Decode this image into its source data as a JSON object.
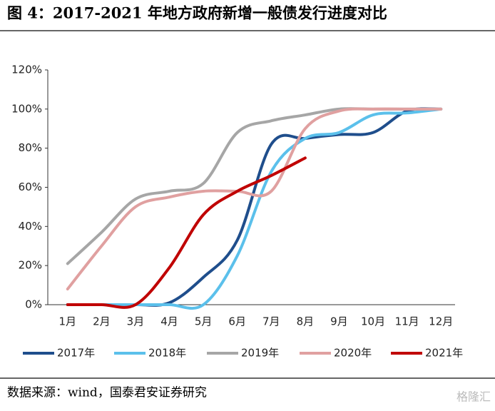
{
  "chart_data": {
    "type": "line",
    "title": "图 4：2017-2021 年地方政府新增一般债发行进度对比",
    "source": "数据来源：wind，国泰君安证券研究",
    "watermark": "格隆汇",
    "categories": [
      "1月",
      "2月",
      "3月",
      "4月",
      "5月",
      "6月",
      "7月",
      "8月",
      "9月",
      "10月",
      "11月",
      "12月"
    ],
    "ylim": [
      0,
      120
    ],
    "yticks": [
      {
        "value": 0,
        "label": "0%"
      },
      {
        "value": 20,
        "label": "20%"
      },
      {
        "value": 40,
        "label": "40%"
      },
      {
        "value": 60,
        "label": "60%"
      },
      {
        "value": 80,
        "label": "80%"
      },
      {
        "value": 100,
        "label": "100%"
      },
      {
        "value": 120,
        "label": "120%"
      }
    ],
    "legend": "bottom",
    "series": [
      {
        "name": "2017年",
        "color": "#1f4e8c",
        "values": [
          0,
          0,
          0,
          1,
          14,
          33,
          82,
          85,
          87,
          88,
          99,
          100
        ]
      },
      {
        "name": "2018年",
        "color": "#5bc0eb",
        "values": [
          0,
          0,
          0,
          0,
          0,
          25,
          68,
          85,
          88,
          97,
          98,
          100
        ]
      },
      {
        "name": "2019年",
        "color": "#a6a6a6",
        "values": [
          21,
          37,
          54,
          58,
          62,
          88,
          94,
          97,
          100,
          100,
          100,
          100
        ]
      },
      {
        "name": "2020年",
        "color": "#e0a0a0",
        "values": [
          8,
          30,
          50,
          55,
          58,
          58,
          58,
          90,
          99,
          100,
          100,
          100
        ]
      },
      {
        "name": "2021年",
        "color": "#c00000",
        "values": [
          0,
          0,
          0,
          19,
          46,
          58,
          66,
          75,
          null,
          null,
          null,
          null
        ]
      }
    ]
  }
}
